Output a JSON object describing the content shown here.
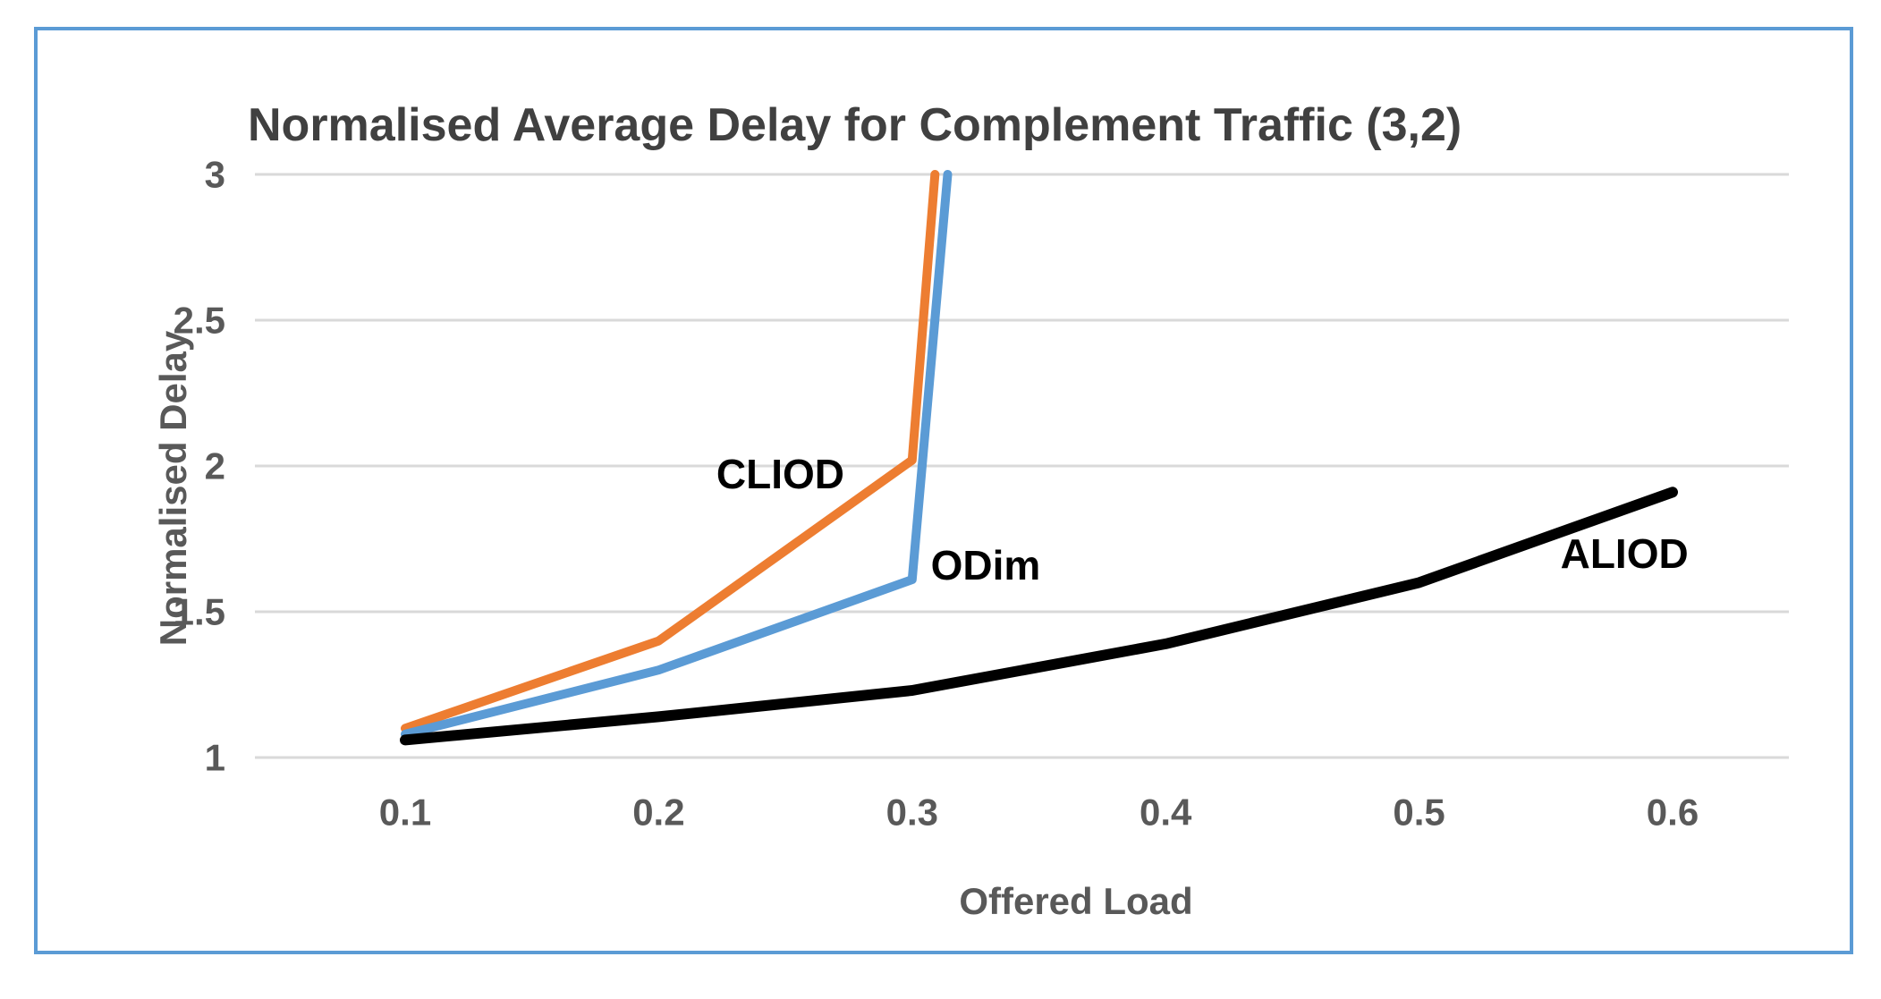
{
  "chart_data": {
    "type": "line",
    "title": "Normalised Average Delay for Complement Traffic (3,2)",
    "xlabel": "Offered Load",
    "ylabel": "Normalised Delay",
    "xlim": [
      0.04,
      0.65
    ],
    "ylim": [
      1,
      3
    ],
    "x_ticks": [
      0.1,
      0.2,
      0.3,
      0.4,
      0.5,
      0.6
    ],
    "y_ticks": [
      1,
      1.5,
      2,
      2.5,
      3
    ],
    "grid": true,
    "legend_position": "inline-annotations",
    "series": [
      {
        "name": "CLIOD",
        "color": "#ED7D31",
        "points": [
          [
            0.1,
            1.1
          ],
          [
            0.2,
            1.4
          ],
          [
            0.3,
            2.02
          ],
          [
            0.309,
            3.0
          ]
        ]
      },
      {
        "name": "ODim",
        "color": "#5B9BD5",
        "points": [
          [
            0.1,
            1.08
          ],
          [
            0.2,
            1.3
          ],
          [
            0.3,
            1.61
          ],
          [
            0.314,
            3.0
          ]
        ]
      },
      {
        "name": "ALIOD",
        "color": "#000000",
        "points": [
          [
            0.1,
            1.06
          ],
          [
            0.2,
            1.14
          ],
          [
            0.3,
            1.23
          ],
          [
            0.4,
            1.39
          ],
          [
            0.5,
            1.6
          ],
          [
            0.6,
            1.91
          ]
        ]
      }
    ],
    "annotations": [
      {
        "label": "CLIOD",
        "x": 0.248,
        "y": 1.972
      },
      {
        "label": "ODim",
        "x": 0.329,
        "y": 1.66
      },
      {
        "label": "ALIOD",
        "x": 0.581,
        "y": 1.7
      }
    ],
    "colors": {
      "grid": "#D9D9D9",
      "title_text": "#404040",
      "axis_text": "#595959",
      "annotation_text": "#000000",
      "border": "#5B9BD5",
      "background": "#FFFFFF"
    }
  }
}
